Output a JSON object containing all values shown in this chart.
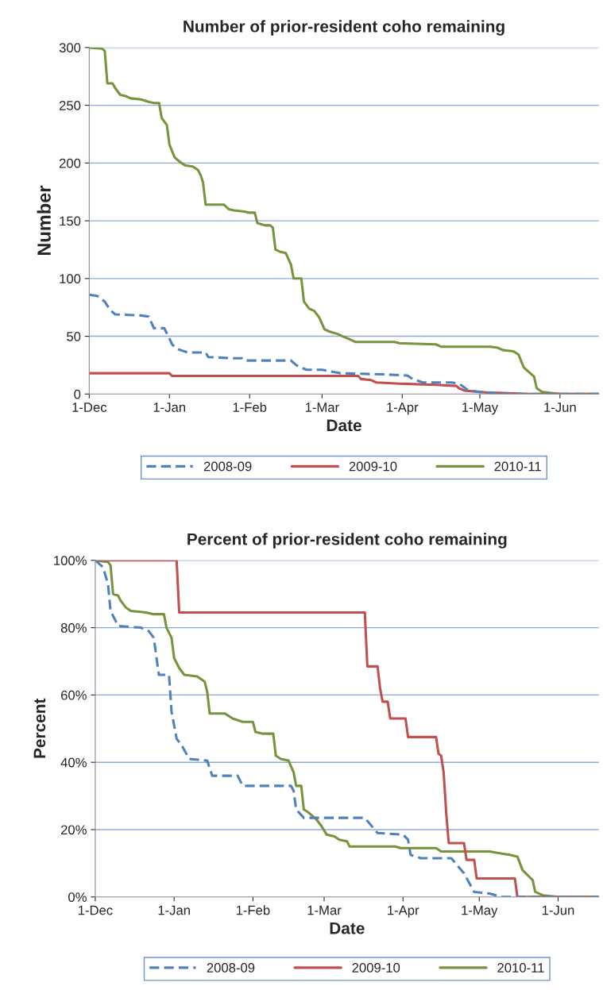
{
  "chart_data": [
    {
      "type": "line",
      "title": "Number of prior-resident coho remaining",
      "xlabel": "Date",
      "ylabel": "Number",
      "xlim": [
        "2010-12-01",
        "2011-06-16"
      ],
      "ylim": [
        0,
        300
      ],
      "xticks": [
        {
          "value": "2010-12-01",
          "label": "1-Dec"
        },
        {
          "value": "2011-01-01",
          "label": "1-Jan"
        },
        {
          "value": "2011-02-01",
          "label": "1-Feb"
        },
        {
          "value": "2011-03-01",
          "label": "1-Mar"
        },
        {
          "value": "2011-04-01",
          "label": "1-Apr"
        },
        {
          "value": "2011-05-01",
          "label": "1-May"
        },
        {
          "value": "2011-06-01",
          "label": "1-Jun"
        }
      ],
      "yticks": [
        0,
        50,
        100,
        150,
        200,
        250,
        300
      ],
      "grid": "y",
      "legend": "bottom",
      "series": [
        {
          "name": "2008-09",
          "color": "#4f81bd",
          "line_style": "dashed",
          "x": [
            "2010-12-01",
            "2010-12-04",
            "2010-12-07",
            "2010-12-09",
            "2010-12-11",
            "2010-12-21",
            "2010-12-24",
            "2010-12-26",
            "2010-12-30",
            "2011-01-01",
            "2011-01-02",
            "2011-01-04",
            "2011-01-08",
            "2011-01-15",
            "2011-01-16",
            "2011-01-25",
            "2011-01-29",
            "2011-01-30",
            "2011-02-17",
            "2011-02-19",
            "2011-02-23",
            "2011-03-01",
            "2011-03-08",
            "2011-03-25",
            "2011-04-03",
            "2011-04-05",
            "2011-04-09",
            "2011-04-20",
            "2011-04-23",
            "2011-04-26",
            "2011-04-30",
            "2011-05-06",
            "2011-05-10",
            "2011-06-16"
          ],
          "values": [
            86,
            85,
            80,
            73,
            69,
            68,
            67,
            57,
            57,
            48,
            43,
            39,
            36,
            36,
            32,
            31,
            31,
            29,
            29,
            25,
            21,
            21,
            18,
            17,
            16,
            13,
            10,
            10,
            9,
            4,
            2,
            1,
            0,
            0
          ]
        },
        {
          "name": "2009-10",
          "color": "#c0504d",
          "line_style": "solid",
          "x": [
            "2010-12-01",
            "2011-01-01",
            "2011-01-02",
            "2011-03-15",
            "2011-03-16",
            "2011-03-20",
            "2011-03-22",
            "2011-03-31",
            "2011-04-14",
            "2011-04-22",
            "2011-04-23",
            "2011-04-25",
            "2011-04-30",
            "2011-05-05",
            "2011-05-08",
            "2011-05-20",
            "2011-06-16"
          ],
          "values": [
            18,
            18,
            15.7,
            15.7,
            13,
            12,
            10,
            9,
            8,
            7,
            5,
            3,
            2,
            1,
            1,
            0,
            0
          ]
        },
        {
          "name": "2010-11",
          "color": "#77933c",
          "line_style": "solid",
          "x": [
            "2010-12-01",
            "2010-12-06",
            "2010-12-07",
            "2010-12-08",
            "2010-12-10",
            "2010-12-11",
            "2010-12-13",
            "2010-12-15",
            "2010-12-17",
            "2010-12-21",
            "2010-12-24",
            "2010-12-26",
            "2010-12-28",
            "2010-12-29",
            "2010-12-31",
            "2011-01-01",
            "2011-01-03",
            "2011-01-05",
            "2011-01-07",
            "2011-01-10",
            "2011-01-12",
            "2011-01-13",
            "2011-01-14",
            "2011-01-15",
            "2011-01-22",
            "2011-01-24",
            "2011-01-26",
            "2011-01-30",
            "2011-02-01",
            "2011-02-03",
            "2011-02-04",
            "2011-02-07",
            "2011-02-09",
            "2011-02-10",
            "2011-02-11",
            "2011-02-13",
            "2011-02-15",
            "2011-02-17",
            "2011-02-18",
            "2011-02-21",
            "2011-02-22",
            "2011-02-24",
            "2011-02-26",
            "2011-02-28",
            "2011-03-02",
            "2011-03-04",
            "2011-03-07",
            "2011-03-09",
            "2011-03-11",
            "2011-03-14",
            "2011-03-29",
            "2011-03-31",
            "2011-04-14",
            "2011-04-16",
            "2011-05-05",
            "2011-05-08",
            "2011-05-10",
            "2011-05-14",
            "2011-05-16",
            "2011-05-18",
            "2011-05-20",
            "2011-05-22",
            "2011-05-23",
            "2011-05-25",
            "2011-05-28",
            "2011-06-01",
            "2011-06-16"
          ],
          "values": [
            300,
            299,
            297,
            269,
            269,
            265,
            259,
            258,
            256,
            255,
            253,
            252,
            252,
            239,
            233,
            216,
            205,
            201,
            198,
            197,
            194,
            190,
            183,
            164,
            164,
            160,
            159,
            158,
            157,
            157,
            148,
            146,
            146,
            144,
            125,
            123,
            122,
            112,
            100,
            100,
            80,
            74,
            72,
            66,
            56,
            54,
            52,
            50,
            48,
            45,
            45,
            44,
            43,
            41,
            41,
            40,
            38,
            37,
            34,
            23,
            19,
            15,
            5,
            2,
            1,
            0,
            0
          ]
        }
      ]
    },
    {
      "type": "line",
      "title": "Percent of prior-resident coho remaining",
      "xlabel": "Date",
      "ylabel": "Percent",
      "xlim": [
        "2010-12-01",
        "2011-06-17"
      ],
      "ylim": [
        0,
        100
      ],
      "xticks": [
        {
          "value": "2010-12-01",
          "label": "1-Dec"
        },
        {
          "value": "2011-01-01",
          "label": "1-Jan"
        },
        {
          "value": "2011-02-01",
          "label": "1-Feb"
        },
        {
          "value": "2011-03-01",
          "label": "1-Mar"
        },
        {
          "value": "2011-04-01",
          "label": "1-Apr"
        },
        {
          "value": "2011-05-01",
          "label": "1-May"
        },
        {
          "value": "2011-06-01",
          "label": "1-Jun"
        }
      ],
      "yticks": [
        {
          "value": 0,
          "label": "0%"
        },
        {
          "value": 20,
          "label": "20%"
        },
        {
          "value": 40,
          "label": "40%"
        },
        {
          "value": 60,
          "label": "60%"
        },
        {
          "value": 80,
          "label": "80%"
        },
        {
          "value": 100,
          "label": "100%"
        }
      ],
      "grid": "y",
      "legend": "bottom",
      "series": [
        {
          "name": "2008-09",
          "color": "#4f81bd",
          "line_style": "dashed",
          "x": [
            "2010-12-01",
            "2010-12-04",
            "2010-12-06",
            "2010-12-07",
            "2010-12-10",
            "2010-12-19",
            "2010-12-22",
            "2010-12-24",
            "2010-12-26",
            "2010-12-30",
            "2010-12-31",
            "2011-01-02",
            "2011-01-04",
            "2011-01-07",
            "2011-01-14",
            "2011-01-16",
            "2011-01-26",
            "2011-01-28",
            "2011-02-16",
            "2011-02-17",
            "2011-02-18",
            "2011-02-21",
            "2011-03-17",
            "2011-03-22",
            "2011-04-01",
            "2011-04-03",
            "2011-04-04",
            "2011-04-08",
            "2011-04-20",
            "2011-04-25",
            "2011-04-29",
            "2011-05-05",
            "2011-05-10",
            "2011-06-17"
          ],
          "values": [
            100,
            98,
            93,
            85,
            80.5,
            80,
            79,
            77,
            66,
            66,
            55,
            47,
            45,
            41,
            40.5,
            36,
            36,
            33,
            33,
            31.5,
            26,
            23.5,
            23.5,
            19,
            18.5,
            17,
            12.5,
            11.5,
            11.5,
            7,
            1.5,
            1,
            0,
            0
          ]
        },
        {
          "name": "2009-10",
          "color": "#c0504d",
          "line_style": "solid",
          "x": [
            "2010-12-01",
            "2011-01-02",
            "2011-01-03",
            "2011-03-17",
            "2011-03-18",
            "2011-03-22",
            "2011-03-23",
            "2011-03-24",
            "2011-03-26",
            "2011-03-27",
            "2011-04-02",
            "2011-04-03",
            "2011-04-14",
            "2011-04-15",
            "2011-04-16",
            "2011-04-17",
            "2011-04-18",
            "2011-04-19",
            "2011-04-25",
            "2011-04-26",
            "2011-04-29",
            "2011-04-30",
            "2011-05-15",
            "2011-05-16",
            "2011-06-17"
          ],
          "values": [
            100,
            100,
            84.5,
            84.5,
            68.5,
            68.5,
            62,
            58,
            58,
            53,
            53,
            47.5,
            47.5,
            42.5,
            42,
            37,
            25,
            16,
            16,
            11,
            11,
            5.5,
            5.5,
            0,
            0
          ]
        },
        {
          "name": "2010-11",
          "color": "#77933c",
          "line_style": "solid",
          "x": [
            "2010-12-01",
            "2010-12-06",
            "2010-12-07",
            "2010-12-08",
            "2010-12-10",
            "2010-12-11",
            "2010-12-13",
            "2010-12-15",
            "2010-12-21",
            "2010-12-24",
            "2010-12-28",
            "2010-12-29",
            "2010-12-31",
            "2011-01-01",
            "2011-01-03",
            "2011-01-05",
            "2011-01-10",
            "2011-01-13",
            "2011-01-14",
            "2011-01-15",
            "2011-01-21",
            "2011-01-24",
            "2011-01-28",
            "2011-02-01",
            "2011-02-02",
            "2011-02-05",
            "2011-02-09",
            "2011-02-10",
            "2011-02-12",
            "2011-02-15",
            "2011-02-17",
            "2011-02-18",
            "2011-02-20",
            "2011-02-21",
            "2011-02-23",
            "2011-02-26",
            "2011-02-28",
            "2011-03-02",
            "2011-03-05",
            "2011-03-07",
            "2011-03-10",
            "2011-03-11",
            "2011-03-29",
            "2011-03-31",
            "2011-04-14",
            "2011-04-16",
            "2011-05-05",
            "2011-05-09",
            "2011-05-13",
            "2011-05-16",
            "2011-05-18",
            "2011-05-20",
            "2011-05-22",
            "2011-05-23",
            "2011-05-26",
            "2011-06-01",
            "2011-06-17"
          ],
          "values": [
            100,
            99.5,
            98.5,
            90,
            89.5,
            88,
            86,
            85,
            84.5,
            84,
            84,
            80,
            77,
            71,
            68,
            66,
            65.5,
            64,
            61,
            54.5,
            54.5,
            53,
            52,
            52,
            49,
            48.5,
            48.5,
            42,
            41,
            40.5,
            37,
            33,
            33,
            26,
            25,
            23,
            21,
            18.5,
            18,
            17,
            16.5,
            15,
            15,
            14.5,
            14.5,
            13.5,
            13.5,
            13,
            12.5,
            12,
            8,
            6.5,
            5,
            1.5,
            0.5,
            0,
            0
          ]
        }
      ]
    }
  ]
}
